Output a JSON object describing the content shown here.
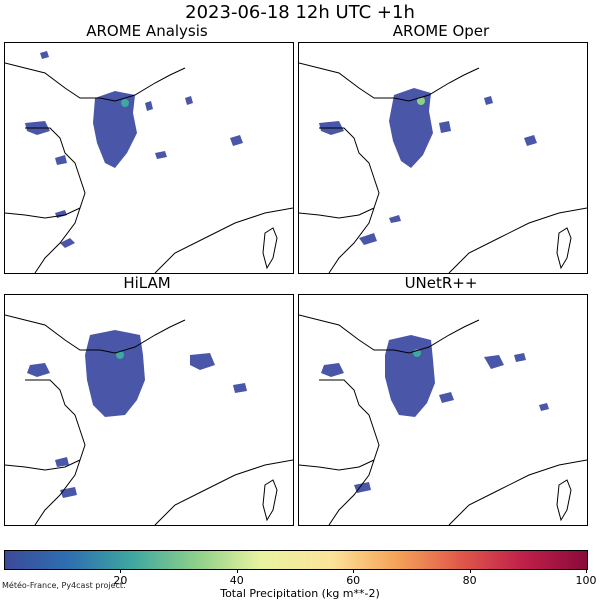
{
  "title": "2023-06-18 12h UTC +1h",
  "panels": [
    {
      "label": "AROME Analysis",
      "type": "observed"
    },
    {
      "label": "AROME Oper",
      "type": "forecast"
    },
    {
      "label": "HiLAM",
      "type": "model"
    },
    {
      "label": "UNetR++",
      "type": "model"
    }
  ],
  "colorbar": {
    "label": "Total Precipitation (kg m**-2)",
    "min": 0,
    "max": 100,
    "ticks": [
      "20",
      "40",
      "60",
      "80",
      "100"
    ],
    "colormap": "viridis-to-red",
    "colors": [
      "#3b4a9a",
      "#2e6fb0",
      "#3fa8a0",
      "#8ed08a",
      "#e8f3a0",
      "#fbe39a",
      "#f5a55a",
      "#e05a4a",
      "#c0204a",
      "#8a0a3a"
    ]
  },
  "credit": "Météo-France, Py4cast project.",
  "map": {
    "region": "Northwest France / English Channel / Bay of Biscay",
    "precip_color": "#4a56a8",
    "coast_color": "#000000"
  }
}
